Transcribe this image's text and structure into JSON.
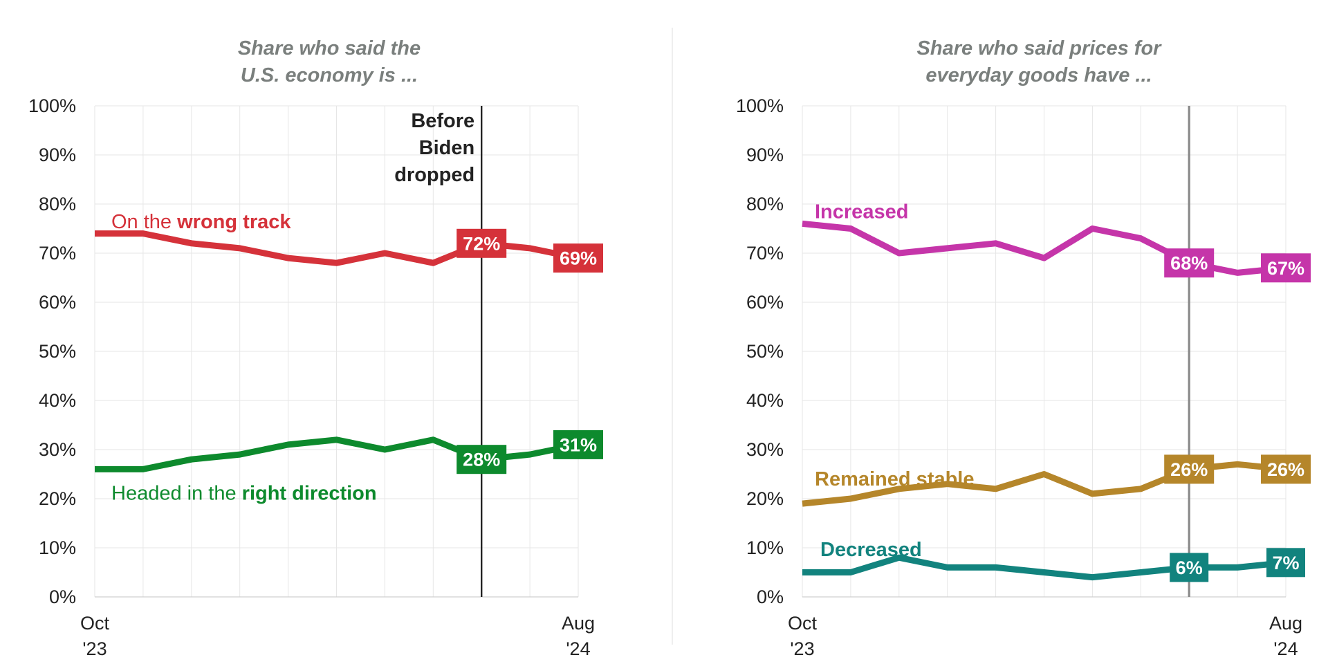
{
  "chart_data": [
    {
      "type": "line",
      "title_lines": [
        "Share who said the",
        "U.S. economy is ..."
      ],
      "x_tick_labels": [
        {
          "lines": [
            "Oct",
            "'23"
          ],
          "index": 0
        },
        {
          "lines": [
            "Aug",
            "'24"
          ],
          "index": 10
        }
      ],
      "ylim": [
        0,
        100
      ],
      "y_ticks": [
        0,
        10,
        20,
        30,
        40,
        50,
        60,
        70,
        80,
        90,
        100
      ],
      "y_tick_suffix": "%",
      "grid": true,
      "x_count": 11,
      "event_marker": {
        "index": 8,
        "label_lines": [
          "Before",
          "Biden",
          "dropped"
        ],
        "color": "#222222"
      },
      "series": [
        {
          "name_parts": [
            {
              "text": "On the ",
              "bold": false
            },
            {
              "text": "wrong track",
              "bold": true
            }
          ],
          "color": "#d5323a",
          "values": [
            74,
            74,
            72,
            71,
            69,
            68,
            70,
            68,
            72,
            71,
            69
          ],
          "label_anchor_value": 76.5,
          "badges": [
            {
              "index": 8,
              "text": "72%"
            },
            {
              "index": 10,
              "text": "69%"
            }
          ]
        },
        {
          "name_parts": [
            {
              "text": "Headed in the ",
              "bold": false
            },
            {
              "text": "right direction",
              "bold": true
            }
          ],
          "color": "#0d8a2d",
          "values": [
            26,
            26,
            28,
            29,
            31,
            32,
            30,
            32,
            28,
            29,
            31
          ],
          "label_anchor_value": 21.2,
          "badges": [
            {
              "index": 8,
              "text": "28%"
            },
            {
              "index": 10,
              "text": "31%"
            }
          ]
        }
      ]
    },
    {
      "type": "line",
      "title_lines": [
        "Share who said prices for",
        "everyday goods have ..."
      ],
      "x_tick_labels": [
        {
          "lines": [
            "Oct",
            "'23"
          ],
          "index": 0
        },
        {
          "lines": [
            "Aug",
            "'24"
          ],
          "index": 10
        }
      ],
      "ylim": [
        0,
        100
      ],
      "y_ticks": [
        0,
        10,
        20,
        30,
        40,
        50,
        60,
        70,
        80,
        90,
        100
      ],
      "y_tick_suffix": "%",
      "grid": true,
      "x_count": 11,
      "event_marker": {
        "index": 8,
        "label_lines": [],
        "color": "#8a8a8a"
      },
      "series": [
        {
          "name_parts": [
            {
              "text": "Increased",
              "bold": true
            }
          ],
          "color": "#c535a9",
          "values": [
            76,
            75,
            70,
            71,
            72,
            69,
            75,
            73,
            68,
            66,
            67
          ],
          "label_anchor_value": 78.5,
          "badges": [
            {
              "index": 8,
              "text": "68%"
            },
            {
              "index": 10,
              "text": "67%"
            }
          ]
        },
        {
          "name_parts": [
            {
              "text": "Remained stable",
              "bold": true
            }
          ],
          "color": "#b5862a",
          "values": [
            19,
            20,
            22,
            23,
            22,
            25,
            21,
            22,
            26,
            27,
            26
          ],
          "label_anchor_value": 24.1,
          "badges": [
            {
              "index": 8,
              "text": "26%"
            },
            {
              "index": 10,
              "text": "26%"
            }
          ]
        },
        {
          "name_parts": [
            {
              "text": "Decreased",
              "bold": true
            }
          ],
          "color": "#12837e",
          "values": [
            5,
            5,
            8,
            6,
            6,
            5,
            4,
            5,
            6,
            6,
            7
          ],
          "label_anchor_value": 9.7,
          "badges": [
            {
              "index": 8,
              "text": "6%"
            },
            {
              "index": 10,
              "text": "7%"
            }
          ]
        }
      ]
    }
  ]
}
